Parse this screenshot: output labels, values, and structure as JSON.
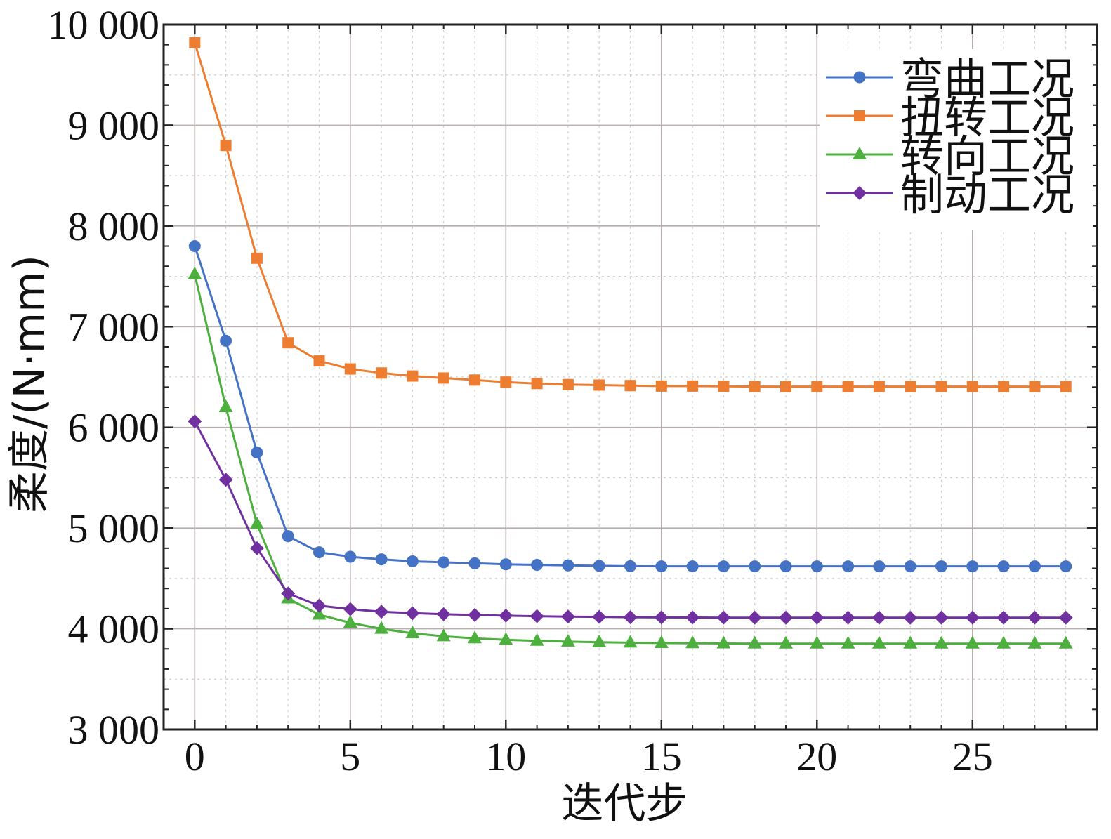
{
  "chart_data": {
    "type": "line",
    "xlabel": "迭代步",
    "ylabel": "柔度/(N·mm)",
    "xlim": [
      -1,
      29
    ],
    "ylim": [
      3000,
      10000
    ],
    "xticks": [
      0,
      5,
      10,
      15,
      20,
      25
    ],
    "xtick_labels": [
      "0",
      "5",
      "10",
      "15",
      "20",
      "25"
    ],
    "yticks": [
      3000,
      4000,
      5000,
      6000,
      7000,
      8000,
      9000,
      10000
    ],
    "ytick_labels": [
      "3 000",
      "4 000",
      "5 000",
      "6 000",
      "7 000",
      "8 000",
      "9 000",
      "10 000"
    ],
    "grid": true,
    "legend_position": "top-right",
    "x": [
      0,
      1,
      2,
      3,
      4,
      5,
      6,
      7,
      8,
      9,
      10,
      11,
      12,
      13,
      14,
      15,
      16,
      17,
      18,
      19,
      20,
      21,
      22,
      23,
      24,
      25,
      26,
      27,
      28
    ],
    "series": [
      {
        "name": "弯曲工况",
        "color": "#4472C4",
        "marker": "circle",
        "values": [
          7800,
          6860,
          5750,
          4920,
          4760,
          4715,
          4690,
          4670,
          4660,
          4650,
          4640,
          4635,
          4630,
          4625,
          4622,
          4620,
          4620,
          4620,
          4620,
          4620,
          4620,
          4620,
          4620,
          4620,
          4620,
          4620,
          4620,
          4620,
          4620
        ]
      },
      {
        "name": "扭转工况",
        "color": "#ED7D31",
        "marker": "square",
        "values": [
          9820,
          8800,
          7680,
          6840,
          6660,
          6580,
          6540,
          6510,
          6490,
          6470,
          6450,
          6435,
          6425,
          6420,
          6415,
          6410,
          6410,
          6408,
          6405,
          6405,
          6405,
          6405,
          6405,
          6405,
          6405,
          6405,
          6405,
          6405,
          6405
        ]
      },
      {
        "name": "转向工况",
        "color": "#4CAF3E",
        "marker": "triangle",
        "values": [
          7520,
          6200,
          5040,
          4300,
          4140,
          4060,
          4000,
          3955,
          3925,
          3905,
          3890,
          3880,
          3872,
          3866,
          3862,
          3858,
          3856,
          3854,
          3853,
          3852,
          3852,
          3852,
          3852,
          3852,
          3852,
          3852,
          3852,
          3852,
          3852
        ]
      },
      {
        "name": "制动工况",
        "color": "#7030A0",
        "marker": "diamond",
        "values": [
          6060,
          5480,
          4800,
          4350,
          4230,
          4195,
          4170,
          4155,
          4145,
          4137,
          4130,
          4125,
          4121,
          4118,
          4115,
          4113,
          4112,
          4111,
          4110,
          4110,
          4110,
          4110,
          4110,
          4110,
          4110,
          4110,
          4110,
          4110,
          4110
        ]
      }
    ]
  }
}
